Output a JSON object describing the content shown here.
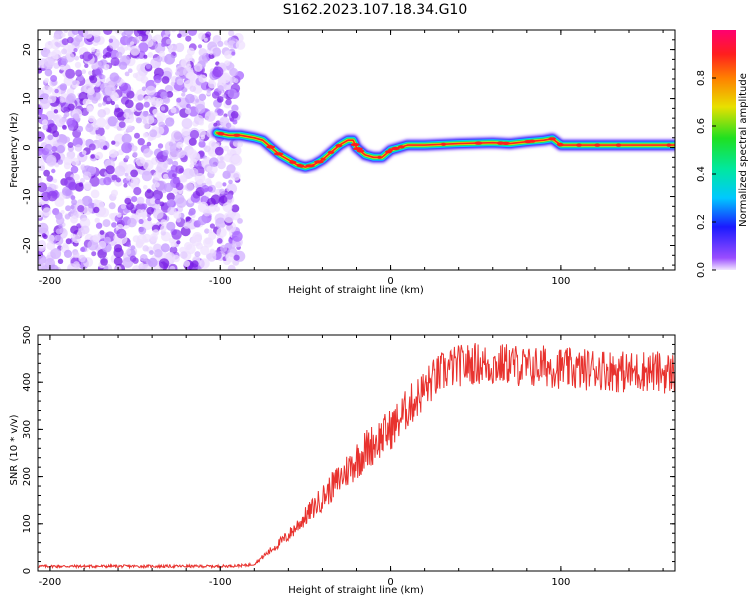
{
  "title": "S162.2023.107.18.34.G10",
  "colors": {
    "snr_line": "#e8322e",
    "scatter_noise": "#b07cf0",
    "frame": "#000000"
  },
  "chart_data": [
    {
      "type": "heatmap",
      "xlabel": "Height of straight line (km)",
      "ylabel": "Frequency (Hz)",
      "xlim": [
        -207,
        167
      ],
      "ylim": [
        -25,
        24
      ],
      "x_ticks": [
        -200,
        -100,
        0,
        100
      ],
      "y_ticks": [
        -20,
        -10,
        0,
        10,
        20
      ],
      "x_tick_labels": [
        "-200",
        "-100",
        "0",
        "100"
      ],
      "y_tick_labels": [
        "-20",
        "-10",
        "0",
        "10",
        "20"
      ],
      "grid": false,
      "colorbar": {
        "label": "Normalized spectral amplitude",
        "range": [
          0.0,
          1.0
        ],
        "ticks": [
          0.0,
          0.2,
          0.4,
          0.6,
          0.8
        ],
        "tick_labels": [
          "0.0",
          "0.2",
          "0.4",
          "0.6",
          "0.8"
        ]
      },
      "noise_region_x": [
        -207,
        -88
      ],
      "signal_ridge": {
        "x": [
          -102,
          -95,
          -88,
          -80,
          -75,
          -70,
          -65,
          -60,
          -55,
          -50,
          -45,
          -40,
          -35,
          -30,
          -25,
          -22,
          -20,
          -15,
          -10,
          -5,
          0,
          5,
          10,
          20,
          40,
          60,
          70,
          80,
          90,
          95,
          100,
          120,
          140,
          160,
          167
        ],
        "y": [
          3,
          2.5,
          2.5,
          2,
          1.5,
          0,
          -1.5,
          -2.5,
          -3.5,
          -4,
          -3.5,
          -2.5,
          -1,
          0.5,
          1.5,
          1.5,
          0,
          -1.5,
          -2,
          -2,
          -0.5,
          0,
          0.5,
          0.5,
          0.8,
          1.0,
          0.8,
          1.2,
          1.5,
          1.8,
          0.5,
          0.5,
          0.5,
          0.5,
          0.5
        ]
      }
    },
    {
      "type": "line",
      "xlabel": "Height of straight line (km)",
      "ylabel": "SNR (10 * v/v)",
      "xlim": [
        -207,
        167
      ],
      "ylim": [
        0,
        500
      ],
      "x_ticks": [
        -200,
        -100,
        0,
        100
      ],
      "y_ticks": [
        0,
        100,
        200,
        300,
        400,
        500
      ],
      "x_tick_labels": [
        "-200",
        "-100",
        "0",
        "100"
      ],
      "y_tick_labels": [
        "0",
        "100",
        "200",
        "300",
        "400",
        "500"
      ],
      "grid": false,
      "series": [
        {
          "trend_x": [
            -207,
            -150,
            -100,
            -85,
            -80,
            -75,
            -70,
            -65,
            -60,
            -55,
            -50,
            -45,
            -40,
            -35,
            -30,
            -25,
            -20,
            -15,
            -10,
            -5,
            0,
            5,
            10,
            15,
            20,
            25,
            30,
            35,
            40,
            50,
            60,
            70,
            80,
            90,
            100,
            110,
            120,
            130,
            140,
            150,
            160,
            167
          ],
          "trend_y": [
            10,
            10,
            10,
            12,
            15,
            30,
            45,
            60,
            75,
            95,
            115,
            135,
            155,
            175,
            195,
            215,
            235,
            255,
            270,
            285,
            300,
            320,
            345,
            365,
            385,
            405,
            420,
            430,
            435,
            440,
            435,
            440,
            430,
            435,
            430,
            425,
            430,
            425,
            420,
            425,
            420,
            420
          ]
        }
      ]
    }
  ]
}
